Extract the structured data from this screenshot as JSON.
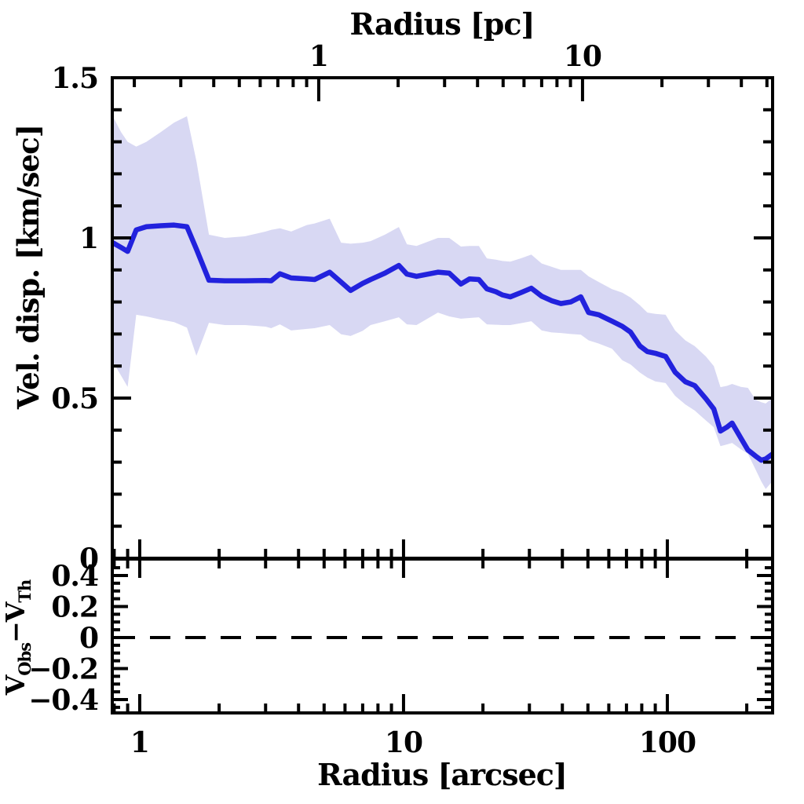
{
  "figure": {
    "background": "#ffffff",
    "axis_color": "#000000",
    "labels": {
      "top_axis_title": "Radius [pc]",
      "bottom_axis_title": "Radius [arcsec]",
      "main_y_title": "Vel. disp. [km/sec]",
      "res_v": "V",
      "res_sub1": "Obs",
      "res_minus_v": "−V",
      "res_sub2": "Th"
    }
  },
  "chart_data": [
    {
      "type": "line",
      "name": "velocity-dispersion-profile",
      "title": "",
      "grid": false,
      "legend": "none",
      "x_axis": {
        "label": "Radius [arcsec]",
        "scale": "log",
        "lim": [
          0.787,
          250.6
        ],
        "major_ticks": [
          {
            "v": 1,
            "label": "1"
          },
          {
            "v": 10,
            "label": "10"
          },
          {
            "v": 100,
            "label": "100"
          }
        ],
        "minor_ticks": [
          0.8,
          0.9,
          2,
          3,
          4,
          5,
          6,
          7,
          8,
          9,
          20,
          30,
          40,
          50,
          60,
          70,
          80,
          90,
          200
        ]
      },
      "top_axis": {
        "label": "Radius [pc]",
        "arcsec_per_pc": 4.77,
        "major_ticks": [
          {
            "v": 1,
            "label": "1"
          },
          {
            "v": 10,
            "label": "10"
          }
        ],
        "minor_ticks": [
          0.2,
          0.3,
          0.4,
          0.5,
          0.6,
          0.7,
          0.8,
          0.9,
          2,
          3,
          4,
          5,
          6,
          7,
          8,
          9,
          20,
          30,
          40,
          50
        ]
      },
      "y_axis": {
        "label": "Vel. disp. [km/sec]",
        "lim": [
          0,
          1.5
        ],
        "major_ticks": [
          {
            "v": 0,
            "label": "0"
          },
          {
            "v": 0.5,
            "label": "0.5"
          },
          {
            "v": 1,
            "label": "1"
          },
          {
            "v": 1.5,
            "label": "1.5"
          }
        ],
        "minor_ticks": [
          0.1,
          0.2,
          0.3,
          0.4,
          0.6,
          0.7,
          0.8,
          0.9,
          1.1,
          1.2,
          1.3,
          1.4
        ]
      },
      "series": [
        {
          "name": "velocity-dispersion",
          "color": "#2222dd",
          "band_color": "#d8d8f3",
          "x": [
            0.79,
            0.85,
            0.9,
            0.97,
            1.06,
            1.2,
            1.35,
            1.51,
            1.64,
            1.83,
            2.1,
            2.5,
            3.0,
            3.15,
            3.4,
            3.75,
            4.3,
            4.6,
            5.25,
            5.8,
            6.3,
            7.0,
            7.5,
            8.5,
            9.6,
            10.3,
            11.2,
            13.5,
            14.9,
            16.5,
            17.8,
            19.3,
            20.7,
            22.4,
            23.7,
            25.4,
            28,
            30.5,
            33.4,
            36.4,
            39.5,
            43,
            47,
            50.3,
            55,
            61.7,
            67.5,
            72.5,
            78.6,
            84,
            90,
            98.5,
            107,
            117,
            127,
            140,
            150,
            159,
            168,
            176,
            190,
            202,
            216,
            227,
            236,
            250
          ],
          "y": [
            0.985,
            0.97,
            0.958,
            1.025,
            1.035,
            1.038,
            1.04,
            1.035,
            0.965,
            0.868,
            0.866,
            0.866,
            0.867,
            0.866,
            0.888,
            0.875,
            0.872,
            0.87,
            0.893,
            0.862,
            0.836,
            0.858,
            0.87,
            0.89,
            0.914,
            0.887,
            0.88,
            0.893,
            0.89,
            0.856,
            0.872,
            0.87,
            0.841,
            0.832,
            0.822,
            0.816,
            0.83,
            0.843,
            0.818,
            0.804,
            0.795,
            0.8,
            0.816,
            0.767,
            0.76,
            0.74,
            0.724,
            0.706,
            0.663,
            0.645,
            0.64,
            0.63,
            0.581,
            0.551,
            0.539,
            0.498,
            0.466,
            0.397,
            0.409,
            0.422,
            0.375,
            0.338,
            0.319,
            0.306,
            0.31,
            0.325
          ],
          "y_upper": [
            1.38,
            1.33,
            1.3,
            1.285,
            1.3,
            1.33,
            1.36,
            1.38,
            1.24,
            1.01,
            1.0,
            1.005,
            1.02,
            1.025,
            1.03,
            1.02,
            1.04,
            1.045,
            1.06,
            0.985,
            0.982,
            0.985,
            0.99,
            1.01,
            1.034,
            0.98,
            0.975,
            1.0,
            1.0,
            0.973,
            0.975,
            0.975,
            0.936,
            0.932,
            0.928,
            0.926,
            0.937,
            0.948,
            0.92,
            0.91,
            0.9,
            0.9,
            0.9,
            0.88,
            0.862,
            0.84,
            0.829,
            0.814,
            0.79,
            0.767,
            0.763,
            0.76,
            0.711,
            0.68,
            0.662,
            0.63,
            0.6,
            0.534,
            0.538,
            0.544,
            0.535,
            0.532,
            0.495,
            0.487,
            0.483,
            0.5
          ],
          "y_lower": [
            0.615,
            0.57,
            0.535,
            0.76,
            0.755,
            0.745,
            0.737,
            0.72,
            0.632,
            0.735,
            0.728,
            0.728,
            0.723,
            0.718,
            0.73,
            0.711,
            0.716,
            0.718,
            0.728,
            0.699,
            0.694,
            0.71,
            0.728,
            0.74,
            0.752,
            0.73,
            0.728,
            0.767,
            0.755,
            0.748,
            0.75,
            0.752,
            0.73,
            0.729,
            0.728,
            0.728,
            0.734,
            0.74,
            0.711,
            0.705,
            0.703,
            0.7,
            0.698,
            0.68,
            0.67,
            0.654,
            0.618,
            0.605,
            0.58,
            0.564,
            0.552,
            0.547,
            0.507,
            0.48,
            0.461,
            0.43,
            0.409,
            0.35,
            0.355,
            0.36,
            0.34,
            0.326,
            0.277,
            0.24,
            0.216,
            0.24
          ]
        }
      ]
    },
    {
      "type": "reference-line",
      "name": "velocity-residuals",
      "y_axis": {
        "label": "V_Obs−V_Th",
        "lim": [
          -0.486,
          0.506
        ],
        "major_ticks": [
          {
            "v": 0.4,
            "label": "0.4"
          },
          {
            "v": 0.2,
            "label": "0.2"
          },
          {
            "v": 0,
            "label": "0"
          },
          {
            "v": -0.2,
            "label": "−0.2"
          },
          {
            "v": -0.4,
            "label": "−0.4"
          }
        ],
        "minor_ticks": [
          0.5,
          0.45,
          0.35,
          0.3,
          0.25,
          0.15,
          0.1,
          0.05,
          -0.05,
          -0.1,
          -0.15,
          -0.25,
          -0.3,
          -0.35,
          -0.45
        ]
      },
      "reference_line": {
        "y": 0,
        "style": "dashed",
        "color": "#000000"
      },
      "series": []
    }
  ]
}
